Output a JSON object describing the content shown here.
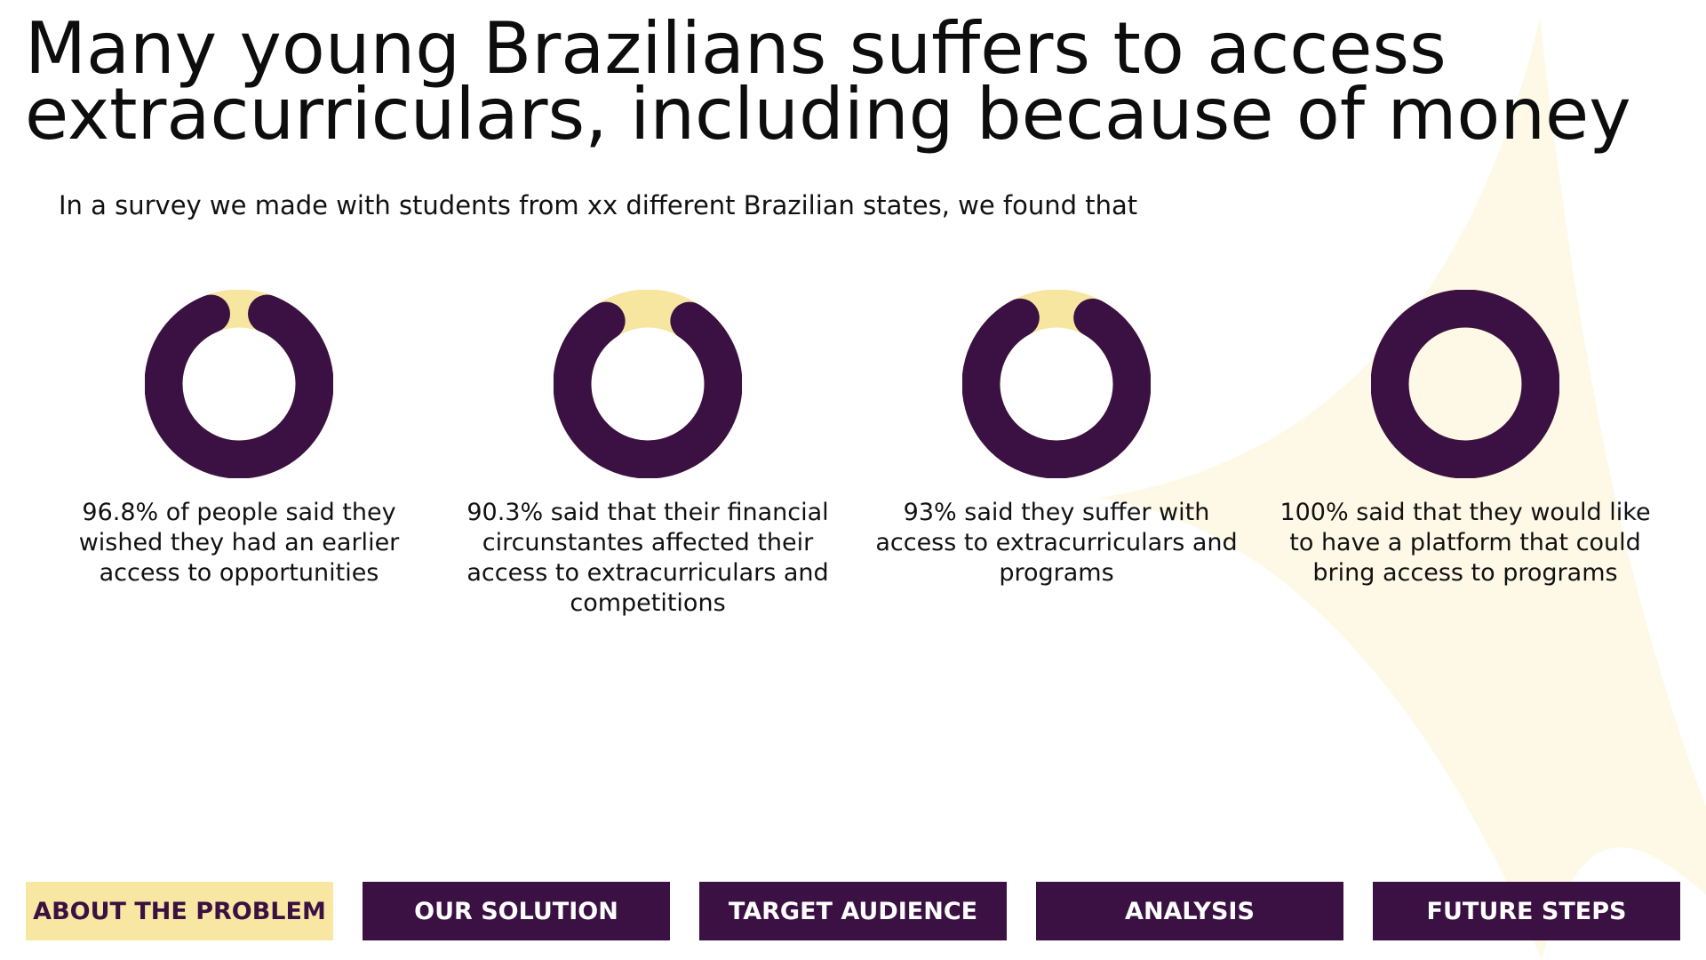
{
  "title": "Many young Brazilians suffers to access extracurriculars, including because of money",
  "subtitle": "In a survey we made with students from xx different Brazilian states, we found that",
  "colors": {
    "ring": "#3a1142",
    "ring_gap": "#f7e6a0",
    "star": "#fdf9e6",
    "nav_active_bg": "#f8e7a2",
    "nav_active_text": "#3a1142",
    "nav_bg": "#3a1142",
    "nav_text": "#ffffff"
  },
  "chart_data": [
    {
      "type": "pie",
      "value": 96.8,
      "unit": "%",
      "caption": "96.8% of people said they wished they had an earlier access to opportunities"
    },
    {
      "type": "pie",
      "value": 90.3,
      "unit": "%",
      "caption": "90.3% said that their financial circunstantes affected their access to extracurriculars and competitions"
    },
    {
      "type": "pie",
      "value": 93,
      "unit": "%",
      "caption": "93% said they suffer with access to extracurriculars and programs"
    },
    {
      "type": "pie",
      "value": 100,
      "unit": "%",
      "caption": "100% said that they would like to have a platform that could bring access to programs"
    }
  ],
  "nav": [
    {
      "label": "ABOUT THE PROBLEM",
      "active": true
    },
    {
      "label": "OUR SOLUTION",
      "active": false
    },
    {
      "label": "TARGET AUDIENCE",
      "active": false
    },
    {
      "label": "ANALYSIS",
      "active": false
    },
    {
      "label": "FUTURE STEPS",
      "active": false
    }
  ]
}
